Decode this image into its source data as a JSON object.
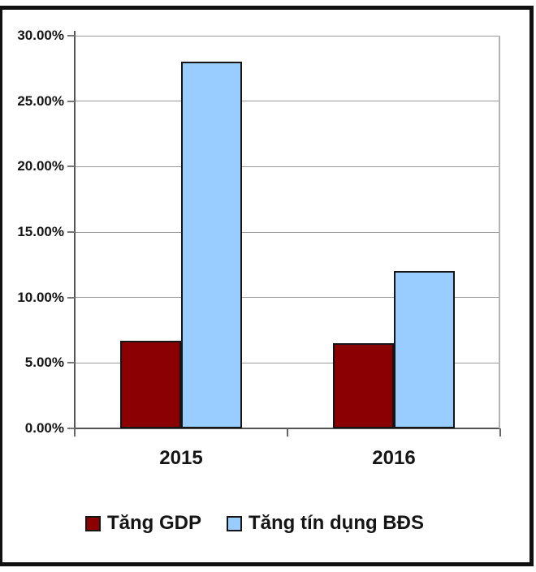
{
  "chart_data": {
    "type": "bar",
    "categories": [
      "2015",
      "2016"
    ],
    "series": [
      {
        "name": "Tăng GDP",
        "color": "#8B0000",
        "values": [
          6.7,
          6.5
        ]
      },
      {
        "name": "Tăng tín dụng BĐS",
        "color": "#99CCFF",
        "values": [
          28.0,
          12.0
        ]
      }
    ],
    "title": "",
    "xlabel": "",
    "ylabel": "",
    "ylim": [
      0,
      30
    ],
    "y_tick_step": 5,
    "y_tick_labels": [
      "0.00%",
      "5.00%",
      "10.00%",
      "15.00%",
      "20.00%",
      "25.00%",
      "30.00%"
    ],
    "grid": true,
    "legend_position": "bottom",
    "bar_border_color": "#151515",
    "plot_background": "#ffffff",
    "outer_border_color": "#111111"
  }
}
